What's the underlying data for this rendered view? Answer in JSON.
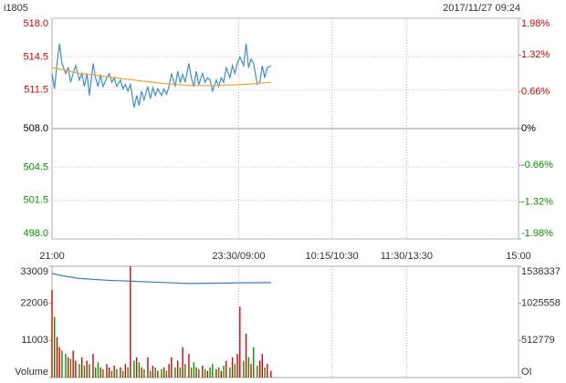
{
  "chart_data": [
    {
      "type": "line",
      "title": "i1805",
      "datetime": "2017/11/27 09:24",
      "xlim": [
        0,
        375
      ],
      "xticks": [
        {
          "value": 0,
          "label": "21:00"
        },
        {
          "value": 150,
          "label": "23:30/09:00"
        },
        {
          "value": 225,
          "label": "10:15/10:30"
        },
        {
          "value": 285,
          "label": "11:30/13:30"
        },
        {
          "value": 375,
          "label": "15:00"
        }
      ],
      "ylim": [
        498,
        518
      ],
      "yticks": [
        {
          "value": 518,
          "label": "518.0"
        },
        {
          "value": 514.5,
          "label": "514.5"
        },
        {
          "value": 511.5,
          "label": "511.5"
        },
        {
          "value": 508,
          "label": "508.0"
        },
        {
          "value": 504.5,
          "label": "504.5"
        },
        {
          "value": 501.5,
          "label": "501.5"
        },
        {
          "value": 498,
          "label": "498.0"
        }
      ],
      "y2lim": [
        -1.98,
        1.98
      ],
      "y2ticks": [
        {
          "value": 1.98,
          "label": "1.98%"
        },
        {
          "value": 1.32,
          "label": "1.32%"
        },
        {
          "value": 0.66,
          "label": "0.66%"
        },
        {
          "value": 0,
          "label": "0%"
        },
        {
          "value": -0.66,
          "label": "-0.66%"
        },
        {
          "value": -1.32,
          "label": "-1.32%"
        },
        {
          "value": -1.98,
          "label": "-1.98%"
        }
      ],
      "grid": true,
      "up_color": "#e00000",
      "down_color": "#009900",
      "series": [
        {
          "color": "#3c8fd6",
          "x": [
            0,
            2,
            4,
            6,
            8,
            11,
            13,
            15,
            17,
            19,
            22,
            24,
            26,
            28,
            30,
            33,
            35,
            37,
            39,
            41,
            44,
            46,
            48,
            50,
            52,
            55,
            57,
            59,
            61,
            63,
            66,
            68,
            70,
            72,
            74,
            77,
            79,
            81,
            83,
            85,
            88,
            90,
            92,
            94,
            96,
            99,
            101,
            103,
            105,
            107,
            110,
            112,
            114,
            116,
            118,
            121,
            123,
            125,
            127,
            129,
            132,
            134,
            136,
            138,
            140,
            143,
            145,
            147,
            149,
            151,
            154,
            156,
            158,
            160,
            162,
            165,
            167,
            169,
            171,
            173,
            176
          ],
          "values": [
            513.0,
            511.6,
            513.9,
            515.7,
            513.9,
            513.0,
            513.5,
            512.2,
            513.0,
            513.7,
            512.4,
            513.0,
            511.8,
            513.0,
            511.0,
            513.9,
            512.6,
            511.8,
            512.9,
            511.8,
            512.6,
            513.0,
            512.2,
            512.6,
            511.8,
            512.4,
            511.6,
            512.0,
            511.4,
            512.0,
            509.9,
            511.0,
            510.1,
            511.4,
            510.6,
            511.8,
            510.7,
            511.7,
            511.0,
            511.6,
            511.0,
            511.6,
            511.1,
            511.8,
            513.0,
            511.8,
            513.2,
            512.2,
            512.9,
            512.2,
            513.9,
            512.6,
            511.8,
            513.2,
            512.0,
            513.0,
            512.2,
            512.6,
            512.4,
            511.4,
            512.4,
            511.8,
            512.6,
            512.2,
            513.5,
            512.6,
            513.7,
            513.0,
            513.9,
            514.5,
            513.7,
            515.7,
            513.5,
            514.3,
            513.9,
            512.0,
            512.2,
            513.7,
            512.6,
            513.5,
            513.7
          ]
        },
        {
          "color": "#f0a52a",
          "x": [
            0,
            11,
            22,
            44,
            66,
            88,
            110,
            132,
            154,
            176
          ],
          "values": [
            513.5,
            513.3,
            513.0,
            512.7,
            512.4,
            512.1,
            511.9,
            511.9,
            512.0,
            512.2
          ]
        }
      ]
    },
    {
      "type": "bar",
      "xlim": [
        0,
        375
      ],
      "ylim": [
        0,
        33009
      ],
      "yticks": [
        {
          "value": 0,
          "label": "Volume"
        },
        11003,
        22006,
        33009
      ],
      "y2lim": [
        0,
        1538337
      ],
      "y2ticks": [
        {
          "value": 0,
          "label": "OI"
        },
        512779,
        1025558,
        1538337
      ],
      "series": [
        {
          "x": [
            0,
            2,
            4,
            6,
            8,
            11,
            13,
            15,
            17,
            19,
            22,
            24,
            26,
            28,
            30,
            33,
            35,
            37,
            39,
            41,
            44,
            46,
            48,
            50,
            52,
            55,
            57,
            59,
            61,
            63,
            66,
            68,
            70,
            72,
            74,
            77,
            79,
            81,
            83,
            85,
            88,
            90,
            92,
            94,
            96,
            99,
            101,
            103,
            105,
            107,
            110,
            112,
            114,
            116,
            118,
            121,
            123,
            125,
            127,
            129,
            132,
            134,
            136,
            138,
            140,
            143,
            145,
            147,
            149,
            151,
            154,
            156,
            158,
            160,
            162,
            165,
            167,
            169,
            171,
            173,
            176
          ],
          "values": [
            26000,
            18000,
            12000,
            9000,
            8000,
            7000,
            6000,
            5500,
            8000,
            5000,
            4000,
            6000,
            3500,
            5000,
            4000,
            7000,
            3000,
            4500,
            3000,
            2500,
            4000,
            3000,
            2000,
            3500,
            2500,
            3000,
            2000,
            4000,
            3000,
            33000,
            5000,
            6000,
            4500,
            3000,
            2500,
            6000,
            2000,
            3500,
            3000,
            2000,
            2500,
            3000,
            2000,
            4000,
            6000,
            3000,
            5000,
            3000,
            9000,
            4000,
            7000,
            3000,
            4500,
            3000,
            2500,
            3500,
            2500,
            2000,
            3000,
            4000,
            2500,
            3000,
            2000,
            3500,
            5000,
            3000,
            6000,
            4000,
            7000,
            21000,
            5000,
            13000,
            6000,
            4000,
            9000,
            3500,
            5000,
            7000,
            3000,
            4000,
            2000
          ]
        },
        {
          "axis": "y2",
          "color": "#3a7fc0",
          "x": [
            0,
            11,
            22,
            44,
            66,
            88,
            110,
            132,
            154,
            176
          ],
          "values": [
            1437000,
            1400000,
            1370000,
            1345000,
            1330000,
            1315000,
            1300000,
            1305000,
            1310000,
            1312000
          ]
        }
      ]
    }
  ]
}
